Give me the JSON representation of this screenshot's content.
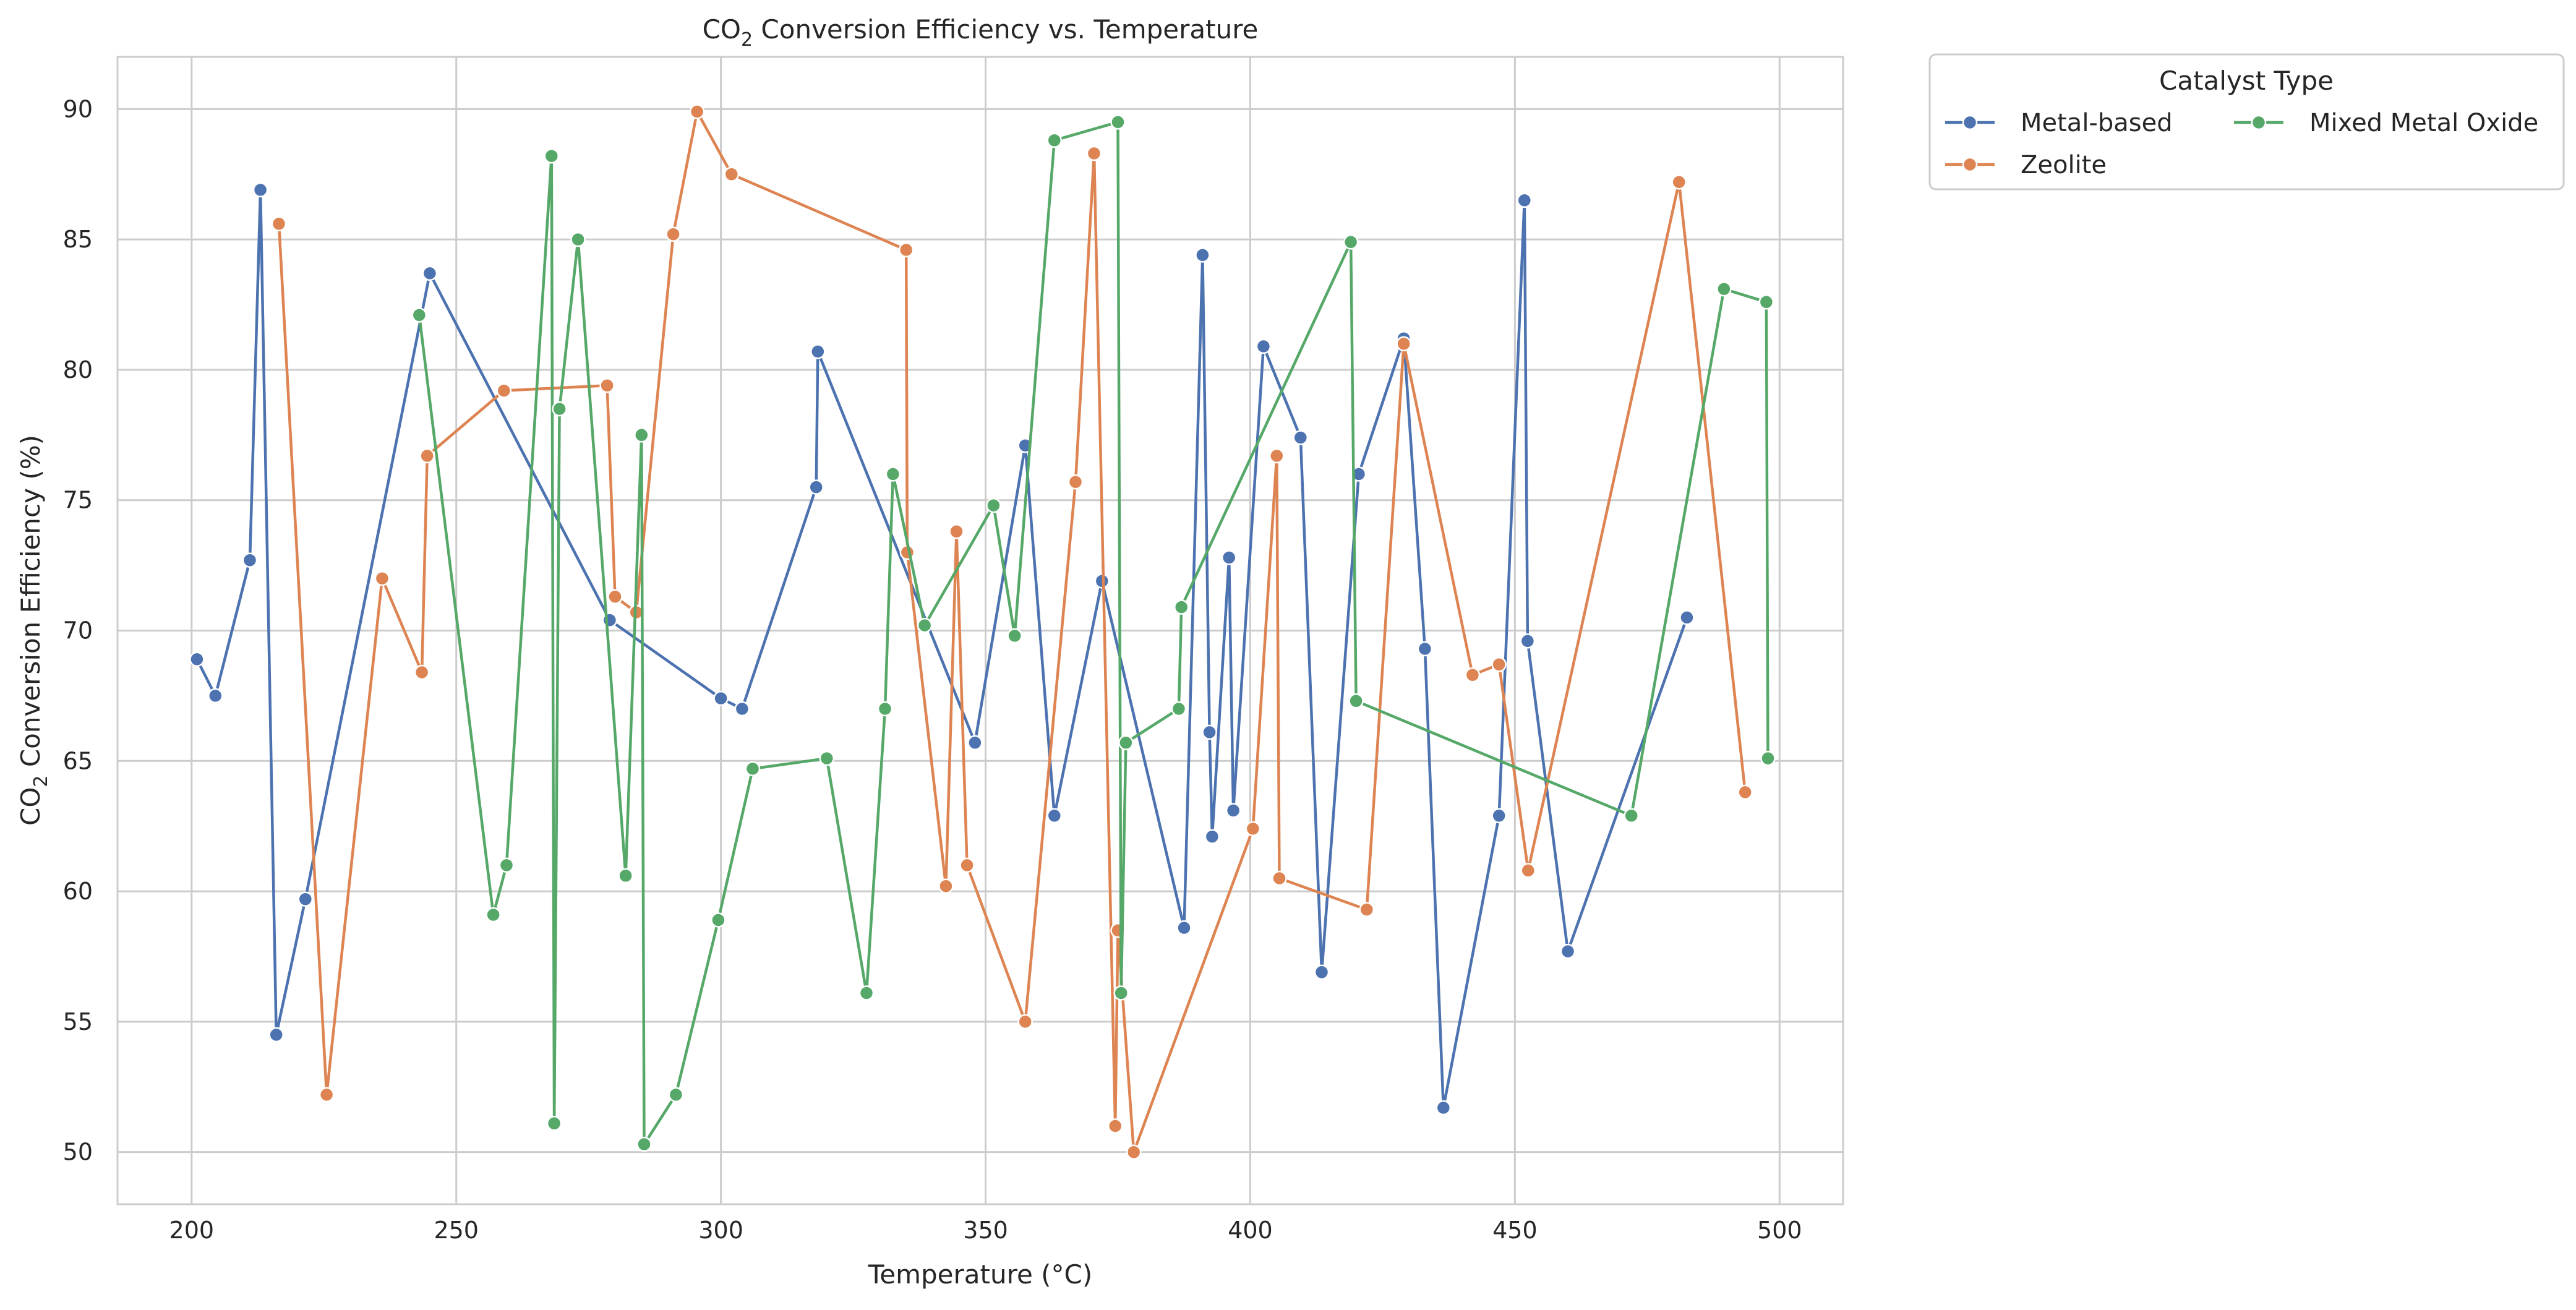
{
  "chart_data": {
    "type": "line",
    "title": {
      "prefix": "CO",
      "sub": "2",
      "suffix": " Conversion Efficiency vs. Temperature"
    },
    "xlabel": "Temperature (°C)",
    "ylabel": {
      "prefix": "CO",
      "sub": "2",
      "suffix": " Conversion Efficiency (%)"
    },
    "xlim": [
      186,
      512
    ],
    "ylim": [
      48,
      92
    ],
    "xticks": [
      200,
      250,
      300,
      350,
      400,
      450,
      500
    ],
    "yticks": [
      50,
      55,
      60,
      65,
      70,
      75,
      80,
      85,
      90
    ],
    "grid": true,
    "legend": {
      "title": "Catalyst Type",
      "placement": "outside-top-right",
      "columns": 2
    },
    "series": [
      {
        "name": "Metal-based",
        "color": "#4c72b0",
        "points": [
          [
            201,
            68.9
          ],
          [
            204.5,
            67.5
          ],
          [
            211,
            72.7
          ],
          [
            213,
            86.9
          ],
          [
            216,
            54.5
          ],
          [
            221.5,
            59.7
          ],
          [
            245,
            83.7
          ],
          [
            279,
            70.4
          ],
          [
            300,
            67.4
          ],
          [
            304,
            67
          ],
          [
            318,
            75.5
          ],
          [
            318.3,
            80.7
          ],
          [
            348,
            65.7
          ],
          [
            357.5,
            77.1
          ],
          [
            363,
            62.9
          ],
          [
            372,
            71.9
          ],
          [
            387.5,
            58.6
          ],
          [
            391,
            84.4
          ],
          [
            392.3,
            66.1
          ],
          [
            392.8,
            62.1
          ],
          [
            396,
            72.8
          ],
          [
            396.8,
            63.1
          ],
          [
            402.5,
            80.9
          ],
          [
            409.5,
            77.4
          ],
          [
            413.5,
            56.9
          ],
          [
            420.5,
            76
          ],
          [
            429,
            81.2
          ],
          [
            433,
            69.3
          ],
          [
            436.5,
            51.7
          ],
          [
            447,
            62.9
          ],
          [
            451.8,
            86.5
          ],
          [
            452.4,
            69.6
          ],
          [
            460,
            57.7
          ],
          [
            482.5,
            70.5
          ]
        ]
      },
      {
        "name": "Zeolite",
        "color": "#dd8452",
        "points": [
          [
            216.5,
            85.6
          ],
          [
            225.5,
            52.2
          ],
          [
            236,
            72
          ],
          [
            243.5,
            68.4
          ],
          [
            244.5,
            76.7
          ],
          [
            259,
            79.2
          ],
          [
            278.5,
            79.4
          ],
          [
            280,
            71.3
          ],
          [
            284,
            70.7
          ],
          [
            291,
            85.2
          ],
          [
            295.5,
            89.9
          ],
          [
            302,
            87.5
          ],
          [
            335,
            84.6
          ],
          [
            335.2,
            73
          ],
          [
            342.5,
            60.2
          ],
          [
            344.5,
            73.8
          ],
          [
            346.5,
            61
          ],
          [
            357.5,
            55
          ],
          [
            367,
            75.7
          ],
          [
            370.5,
            88.3
          ],
          [
            374.5,
            51
          ],
          [
            375,
            58.5
          ],
          [
            378,
            50
          ],
          [
            400.5,
            62.4
          ],
          [
            405,
            76.7
          ],
          [
            405.5,
            60.5
          ],
          [
            422,
            59.3
          ],
          [
            429,
            81
          ],
          [
            442,
            68.3
          ],
          [
            447,
            68.7
          ],
          [
            452.5,
            60.8
          ],
          [
            481,
            87.2
          ],
          [
            493.5,
            63.8
          ]
        ]
      },
      {
        "name": "Mixed Metal Oxide",
        "color": "#55a868",
        "points": [
          [
            243,
            82.1
          ],
          [
            257,
            59.1
          ],
          [
            259.5,
            61
          ],
          [
            268,
            88.2
          ],
          [
            268.5,
            51.1
          ],
          [
            269.5,
            78.5
          ],
          [
            273,
            85
          ],
          [
            282,
            60.6
          ],
          [
            285,
            77.5
          ],
          [
            285.5,
            50.3
          ],
          [
            291.5,
            52.2
          ],
          [
            299.5,
            58.9
          ],
          [
            306,
            64.7
          ],
          [
            320,
            65.1
          ],
          [
            327.5,
            56.1
          ],
          [
            331,
            67
          ],
          [
            332.5,
            76
          ],
          [
            338.5,
            70.2
          ],
          [
            351.5,
            74.8
          ],
          [
            355.5,
            69.8
          ],
          [
            363,
            88.8
          ],
          [
            375,
            89.5
          ],
          [
            375.6,
            56.1
          ],
          [
            376.5,
            65.7
          ],
          [
            386.5,
            67
          ],
          [
            387,
            70.9
          ],
          [
            419,
            84.9
          ],
          [
            420,
            67.3
          ],
          [
            472,
            62.9
          ],
          [
            489.5,
            83.1
          ],
          [
            497.5,
            82.6
          ],
          [
            497.8,
            65.1
          ]
        ]
      }
    ]
  }
}
